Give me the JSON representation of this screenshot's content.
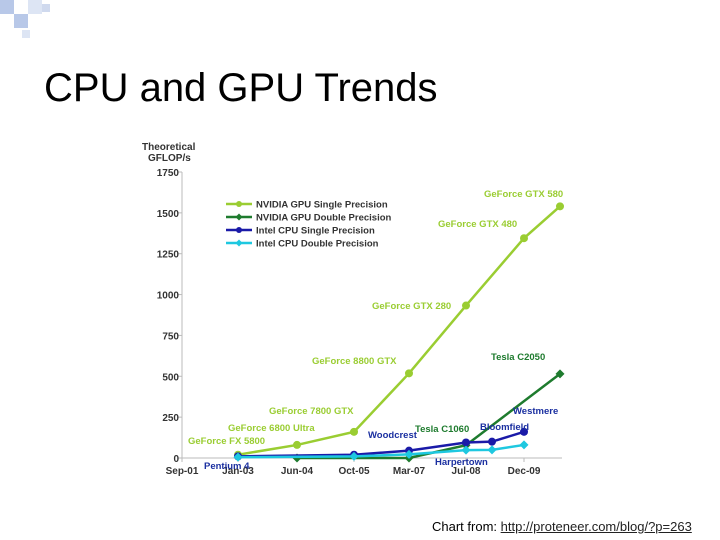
{
  "slide": {
    "title": "CPU and GPU Trends",
    "source_prefix": "Chart from:",
    "source_url": "http://proteneer.com/blog/?p=263"
  },
  "colors": {
    "nvidia_single": "#9acd32",
    "nvidia_double": "#1e7b2e",
    "intel_single": "#1a1aa8",
    "intel_double": "#1ec8e0",
    "annot_gpu": "#9acd32",
    "annot_tesla": "#1e7b2e",
    "annot_intel": "#1a2fa0",
    "deco_square": "#b8c8e8"
  },
  "chart_data": {
    "type": "line",
    "title": "",
    "ylabel": "Theoretical GFLOP/s",
    "xlabel": "",
    "ylim": [
      0,
      1750
    ],
    "yticks": [
      0,
      250,
      500,
      750,
      1000,
      1250,
      1500,
      1750
    ],
    "xticks": [
      "Sep-01",
      "Jan-03",
      "Jun-04",
      "Oct-05",
      "Mar-07",
      "Jul-08",
      "Dec-09"
    ],
    "legend_position": "top-left",
    "grid": false,
    "series": [
      {
        "name": "NVIDIA GPU Single Precision",
        "color_key": "nvidia_single",
        "x": [
          "Jan-03",
          "Jun-04",
          "Oct-05",
          "Mar-07",
          "Jul-08",
          "Dec-09",
          "2010"
        ],
        "values": [
          20,
          80,
          160,
          518,
          933,
          1345,
          1540
        ]
      },
      {
        "name": "NVIDIA GPU Double Precision",
        "color_key": "nvidia_double",
        "x": [
          "Jun-04",
          "Mar-07",
          "Jul-08",
          "2010"
        ],
        "values": [
          0,
          0,
          78,
          515
        ]
      },
      {
        "name": "Intel CPU Single Precision",
        "color_key": "intel_single",
        "x": [
          "Jan-03",
          "Oct-05",
          "Mar-07",
          "Jul-08",
          "2009",
          "Dec-09"
        ],
        "values": [
          10,
          20,
          45,
          95,
          100,
          160
        ]
      },
      {
        "name": "Intel CPU Double Precision",
        "color_key": "intel_double",
        "x": [
          "Jan-03",
          "Oct-05",
          "Mar-07",
          "Jul-08",
          "2009",
          "Dec-09"
        ],
        "values": [
          5,
          10,
          22,
          48,
          50,
          80
        ]
      }
    ],
    "annotations": [
      {
        "text": "GeForce FX 5800",
        "color_key": "annot_gpu"
      },
      {
        "text": "GeForce 6800 Ultra",
        "color_key": "annot_gpu"
      },
      {
        "text": "GeForce 7800 GTX",
        "color_key": "annot_gpu"
      },
      {
        "text": "GeForce 8800 GTX",
        "color_key": "annot_gpu"
      },
      {
        "text": "GeForce GTX 280",
        "color_key": "annot_gpu"
      },
      {
        "text": "GeForce GTX 480",
        "color_key": "annot_gpu"
      },
      {
        "text": "GeForce GTX 580",
        "color_key": "annot_gpu"
      },
      {
        "text": "Tesla C2050",
        "color_key": "annot_tesla"
      },
      {
        "text": "Tesla C1060",
        "color_key": "annot_tesla"
      },
      {
        "text": "Westmere",
        "color_key": "annot_intel"
      },
      {
        "text": "Bloomfield",
        "color_key": "annot_intel"
      },
      {
        "text": "Woodcrest",
        "color_key": "annot_intel"
      },
      {
        "text": "Harpertown",
        "color_key": "annot_intel"
      },
      {
        "text": "Pentium 4",
        "color_key": "annot_intel"
      }
    ]
  }
}
